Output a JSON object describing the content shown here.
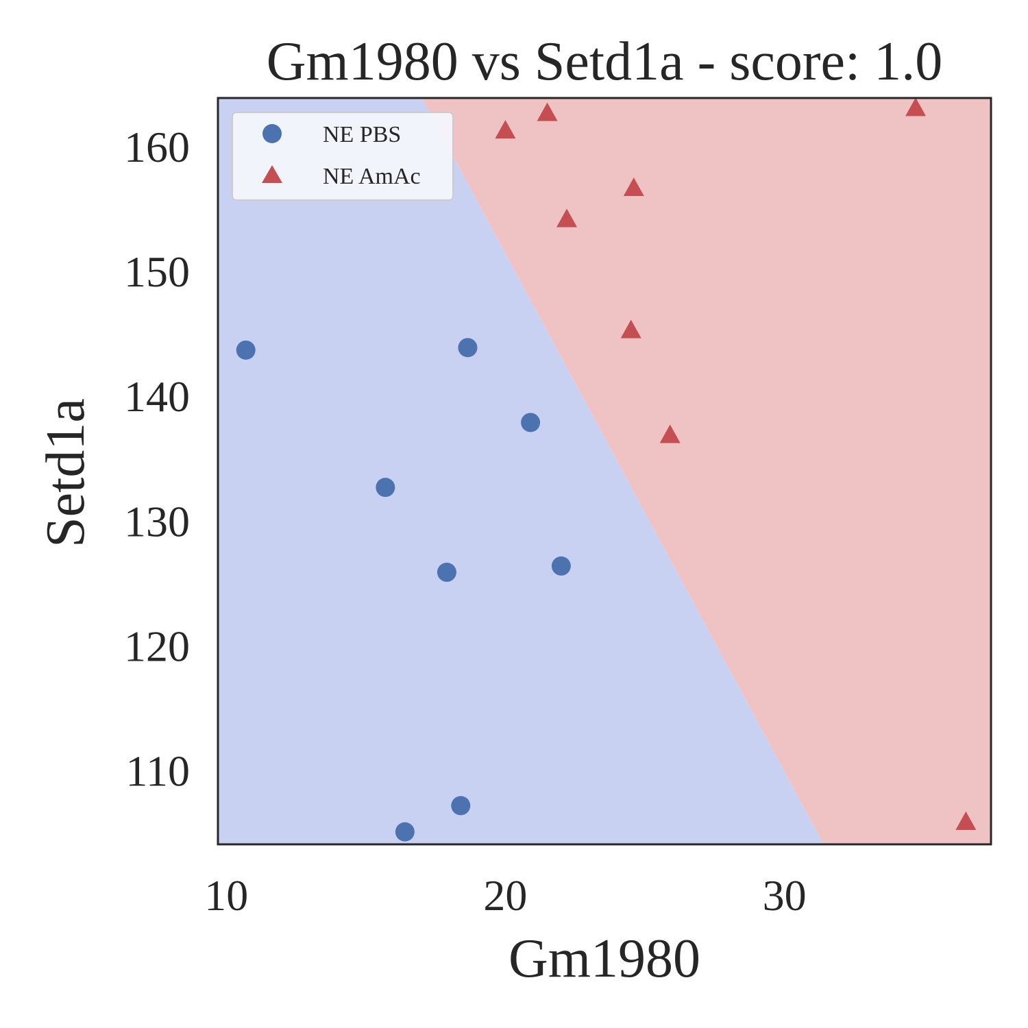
{
  "chart_data": {
    "type": "scatter",
    "title": "Gm1980 vs Setd1a - score: 1.0",
    "xlabel": "Gm1980",
    "ylabel": "Setd1a",
    "xlim": [
      9.7,
      37.4
    ],
    "ylim": [
      104.1,
      163.9
    ],
    "xticks": [
      10,
      20,
      30
    ],
    "yticks": [
      110,
      120,
      130,
      140,
      150,
      160
    ],
    "legend_position": "upper-left",
    "decision_boundary": {
      "points": [
        [
          17.0,
          163.9
        ],
        [
          31.4,
          104.1
        ]
      ],
      "left_region_color": "#c9d1f2",
      "right_region_color": "#efc3c3"
    },
    "series": [
      {
        "name": "NE PBS",
        "marker": "circle",
        "color": "#4c72b0",
        "points": [
          {
            "x": 10.7,
            "y": 143.7
          },
          {
            "x": 18.65,
            "y": 143.9
          },
          {
            "x": 20.9,
            "y": 137.9
          },
          {
            "x": 15.7,
            "y": 132.7
          },
          {
            "x": 17.9,
            "y": 125.9
          },
          {
            "x": 22.0,
            "y": 126.4
          },
          {
            "x": 18.4,
            "y": 107.2
          },
          {
            "x": 16.4,
            "y": 105.1
          }
        ]
      },
      {
        "name": "NE AmAc",
        "marker": "triangle",
        "color": "#c44e52",
        "points": [
          {
            "x": 20.0,
            "y": 161.2
          },
          {
            "x": 21.5,
            "y": 162.6
          },
          {
            "x": 34.7,
            "y": 163.0
          },
          {
            "x": 24.6,
            "y": 156.6
          },
          {
            "x": 22.2,
            "y": 154.1
          },
          {
            "x": 24.5,
            "y": 145.2
          },
          {
            "x": 25.9,
            "y": 136.8
          },
          {
            "x": 36.5,
            "y": 105.8
          }
        ]
      }
    ]
  }
}
